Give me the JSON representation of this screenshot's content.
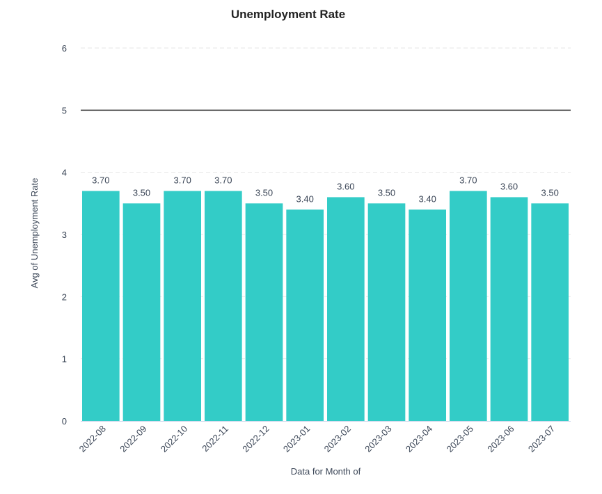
{
  "chart_data": {
    "type": "bar",
    "title": "Unemployment Rate",
    "xlabel": "Data for Month of",
    "ylabel": "Avg of Unemployment Rate",
    "categories": [
      "2022-08",
      "2022-09",
      "2022-10",
      "2022-11",
      "2022-12",
      "2023-01",
      "2023-02",
      "2023-03",
      "2023-04",
      "2023-05",
      "2023-06",
      "2023-07"
    ],
    "values": [
      3.7,
      3.5,
      3.7,
      3.7,
      3.5,
      3.4,
      3.6,
      3.5,
      3.4,
      3.7,
      3.6,
      3.5
    ],
    "data_labels": [
      "3.70",
      "3.50",
      "3.70",
      "3.70",
      "3.50",
      "3.40",
      "3.60",
      "3.50",
      "3.40",
      "3.70",
      "3.60",
      "3.50"
    ],
    "ylim": [
      0,
      6
    ],
    "yticks": [
      "0",
      "1",
      "2",
      "3",
      "4",
      "5",
      "6"
    ],
    "reference_line": 5,
    "grid": true,
    "colors": {
      "bar": "#33ccc7",
      "reference": "#333333",
      "text": "#3a4556"
    }
  }
}
